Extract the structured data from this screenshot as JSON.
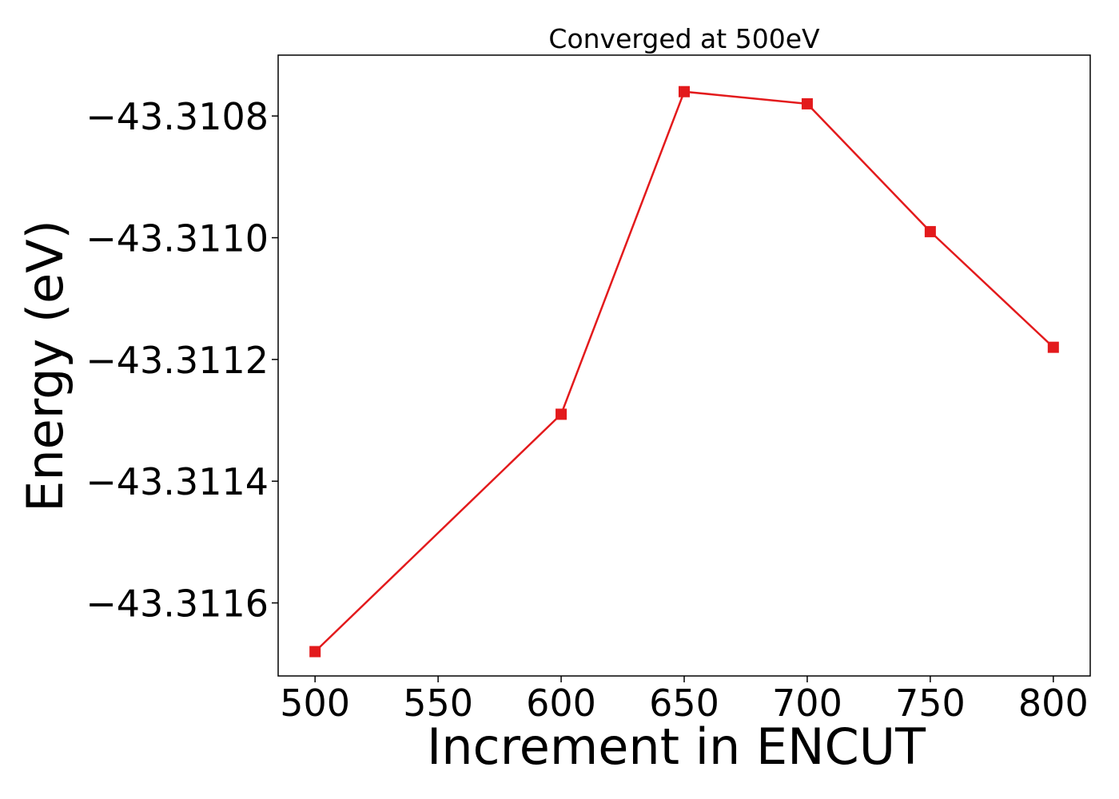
{
  "chart_data": {
    "type": "line",
    "title": "Converged at 500eV",
    "xlabel": "Increment in ENCUT",
    "ylabel": "Energy (eV)",
    "x": [
      500,
      600,
      650,
      700,
      750,
      800
    ],
    "series": [
      {
        "values": [
          -43.31168,
          -43.31129,
          -43.31076,
          -43.31078,
          -43.31099,
          -43.31118
        ],
        "color": "#e31a1c",
        "marker": "square"
      }
    ],
    "xlim": [
      485,
      815
    ],
    "ylim": [
      -43.31172,
      -43.3107
    ],
    "xticks": [
      500,
      550,
      600,
      650,
      700,
      750,
      800
    ],
    "xtick_labels": [
      "500",
      "550",
      "600",
      "650",
      "700",
      "750",
      "800"
    ],
    "yticks": [
      -43.3116,
      -43.3114,
      -43.3112,
      -43.311,
      -43.3108
    ],
    "ytick_labels": [
      "−43.3116",
      "−43.3114",
      "−43.3112",
      "−43.3110",
      "−43.3108"
    ],
    "grid": false,
    "legend": "none"
  }
}
